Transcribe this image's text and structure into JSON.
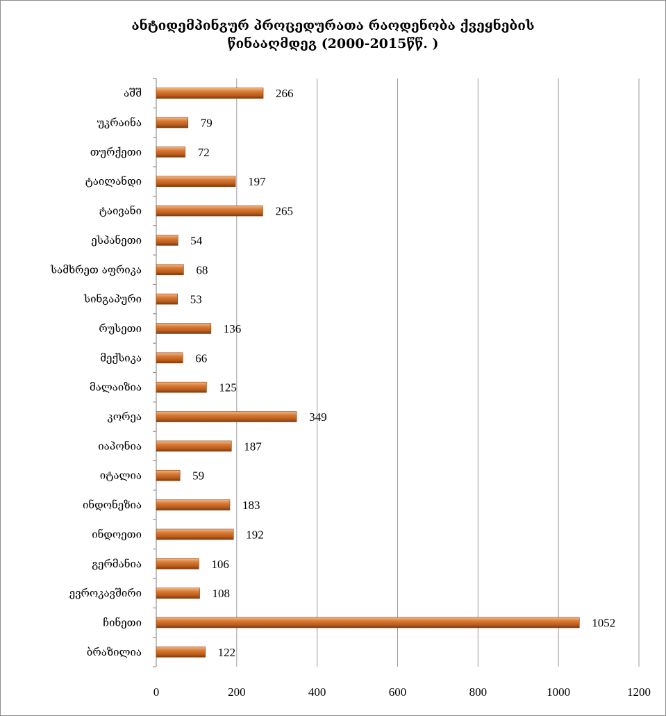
{
  "chart_data": {
    "type": "bar",
    "orientation": "horizontal",
    "title_line1": "ანტიდემპინგურ პროცედურათა რაოდენობა ქვეყნების",
    "title_line2": "წინააღმდეგ   (2000-2015წწ. )",
    "categories": [
      "აშშ",
      "უკრაინა",
      "თურქეთი",
      "ტაილანდი",
      "ტაივანი",
      "ესპანეთი",
      "სამხრეთ აფრიკა",
      "სინგაპური",
      "რუსეთი",
      "მექსიკა",
      "მალაიზია",
      "კორეა",
      "იაპონია",
      "იტალია",
      "ინდონეზია",
      "ინდოეთი",
      "გერმანია",
      "ევროკავშირი",
      "ჩინეთი",
      "ბრაზილია"
    ],
    "values": [
      266,
      79,
      72,
      197,
      265,
      54,
      68,
      53,
      136,
      66,
      125,
      349,
      187,
      59,
      183,
      192,
      106,
      108,
      1052,
      122
    ],
    "xlim": [
      0,
      1200
    ],
    "xticks": [
      0,
      200,
      400,
      600,
      800,
      1000,
      1200
    ],
    "grid": "vertical",
    "bar_color": "#c8661e",
    "data_labels": true
  }
}
